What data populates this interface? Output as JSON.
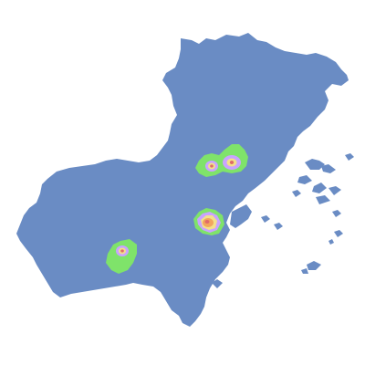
{
  "map": {
    "background_color": "#ffffff",
    "land_color": "#6a8cc4",
    "coverage_colors": {
      "low": "#7fe36a",
      "medium": "#c9a3ff",
      "high": "#f3e08a",
      "peak": "#f2a55f",
      "core": "#e06a6a"
    },
    "hotspots": [
      {
        "id": "north-a",
        "levels": [
          "low",
          "medium",
          "high",
          "core"
        ]
      },
      {
        "id": "north-b",
        "levels": [
          "low",
          "medium",
          "high",
          "core"
        ]
      },
      {
        "id": "center",
        "levels": [
          "low",
          "medium",
          "high",
          "peak"
        ]
      },
      {
        "id": "south-west",
        "levels": [
          "low",
          "medium",
          "high",
          "core"
        ]
      }
    ]
  }
}
